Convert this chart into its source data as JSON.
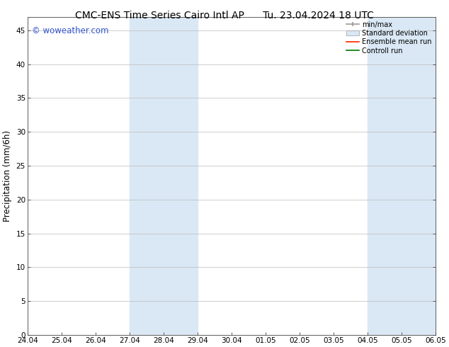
{
  "title_left": "CMC-ENS Time Series Cairo Intl AP",
  "title_right": "Tu. 23.04.2024 18 UTC",
  "ylabel": "Precipitation (mm/6h)",
  "ylim": [
    0,
    47
  ],
  "yticks": [
    0,
    5,
    10,
    15,
    20,
    25,
    30,
    35,
    40,
    45
  ],
  "xtick_labels": [
    "24.04",
    "25.04",
    "26.04",
    "27.04",
    "28.04",
    "29.04",
    "30.04",
    "01.05",
    "02.05",
    "03.05",
    "04.05",
    "05.05",
    "06.05"
  ],
  "xtick_positions": [
    0,
    1,
    2,
    3,
    4,
    5,
    6,
    7,
    8,
    9,
    10,
    11,
    12
  ],
  "shaded_regions": [
    {
      "x_start": 3,
      "x_end": 5,
      "color": "#dae8f5"
    },
    {
      "x_start": 10,
      "x_end": 12,
      "color": "#dae8f5"
    }
  ],
  "background_color": "#ffffff",
  "plot_bg_color": "#ffffff",
  "grid_color": "#bbbbbb",
  "watermark_text": "© woweather.com",
  "watermark_color": "#3355cc",
  "title_fontsize": 10,
  "tick_fontsize": 7.5,
  "ylabel_fontsize": 8.5,
  "watermark_fontsize": 8.5
}
